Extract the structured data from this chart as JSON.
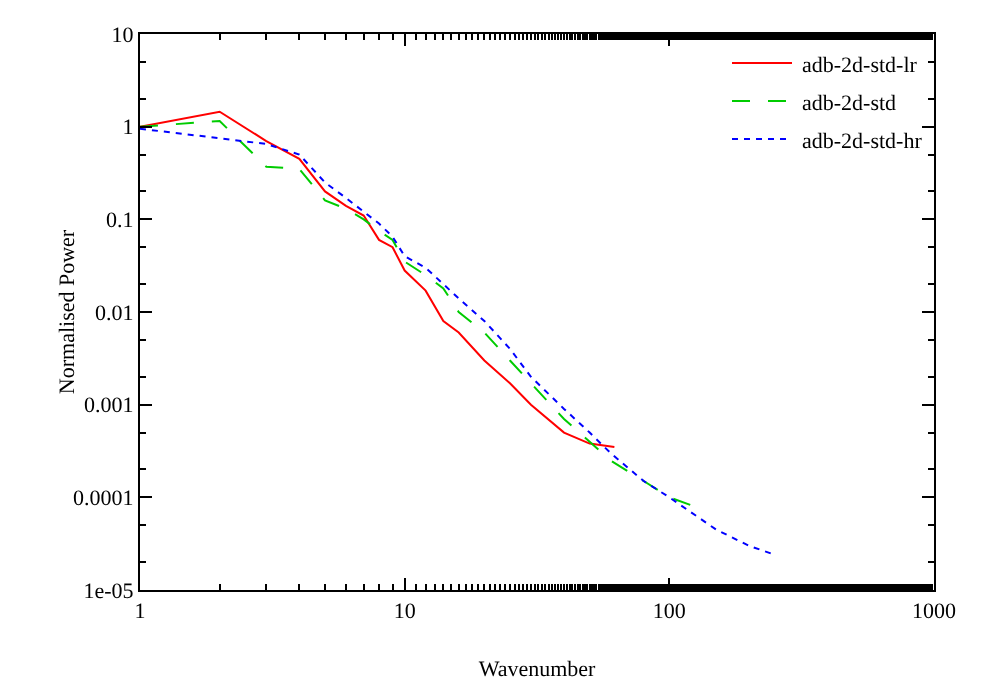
{
  "chart_data": {
    "type": "line",
    "xlabel": "Wavenumber",
    "ylabel": "Normalised Power",
    "log": "xy",
    "grid": false,
    "legend": "top right",
    "marker": "none",
    "xlim": [
      1,
      1000
    ],
    "xticks": [
      1,
      10,
      100,
      1000
    ],
    "ylim": [
      1e-05,
      10
    ],
    "yticks": [
      {
        "value": 1e-05,
        "label": "1e-05"
      },
      0.0001,
      0.001,
      0.01,
      0.1,
      1,
      10
    ],
    "series": [
      {
        "name": "adb-2d-std-lr",
        "color": "#ff0000",
        "line_style": "solid",
        "x": [
          1,
          2,
          3,
          4,
          5,
          6,
          7,
          8,
          9,
          10,
          12,
          14,
          16,
          20,
          25,
          30,
          40,
          50,
          62
        ],
        "values": [
          1,
          1.45,
          0.7,
          0.45,
          0.2,
          0.14,
          0.11,
          0.06,
          0.05,
          0.028,
          0.017,
          0.008,
          0.006,
          0.003,
          0.0017,
          0.001,
          0.0005,
          0.00038,
          0.00035
        ]
      },
      {
        "name": "adb-2d-std",
        "color": "#00cc00",
        "line_style": "dashed",
        "x": [
          1,
          2,
          3,
          4,
          5,
          6,
          7,
          8,
          9,
          10,
          12,
          14,
          16,
          20,
          25,
          30,
          40,
          60,
          80,
          100,
          124
        ],
        "values": [
          1,
          1.15,
          0.37,
          0.35,
          0.16,
          0.13,
          0.1,
          0.075,
          0.06,
          0.035,
          0.025,
          0.018,
          0.01,
          0.006,
          0.003,
          0.0017,
          0.0007,
          0.00025,
          0.00015,
          0.0001,
          8e-05
        ]
      },
      {
        "name": "adb-2d-std-hr",
        "color": "#0000ff",
        "line_style": "dotted",
        "x": [
          1,
          2,
          3,
          4,
          5,
          6,
          8,
          9,
          10,
          12,
          14,
          16,
          20,
          25,
          30,
          40,
          50,
          60,
          80,
          100,
          150,
          200,
          250
        ],
        "values": [
          0.95,
          0.75,
          0.65,
          0.5,
          0.25,
          0.17,
          0.09,
          0.065,
          0.04,
          0.03,
          0.02,
          0.014,
          0.008,
          0.004,
          0.002,
          0.0009,
          0.0005,
          0.0003,
          0.00015,
          0.0001,
          4.5e-05,
          3e-05,
          2.4e-05
        ]
      }
    ]
  }
}
